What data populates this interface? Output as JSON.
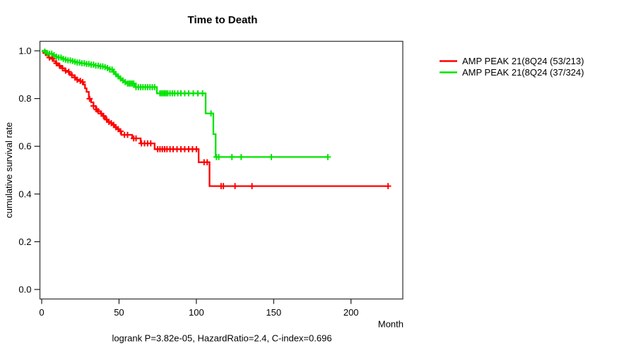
{
  "title": "Time to Death",
  "chart_data": {
    "type": "line",
    "subtype": "kaplan-meier-step",
    "title": "Time to Death",
    "xlabel": "Month",
    "ylabel": "cumulative survival rate",
    "annotation": "logrank P=3.82e-05, HazardRatio=2.4, C-index=0.696",
    "xlim": [
      0,
      233
    ],
    "ylim": [
      0,
      1
    ],
    "xticks": [
      0,
      50,
      100,
      150,
      200
    ],
    "yticks": [
      0.0,
      0.2,
      0.4,
      0.6,
      0.8,
      1.0
    ],
    "ytick_labels": [
      "0.0",
      "0.2",
      "0.4",
      "0.6",
      "0.8",
      "1.0"
    ],
    "grid": false,
    "legend_position": "right-outside",
    "series": [
      {
        "name": "AMP PEAK 21(8Q24 (53/213)",
        "color": "#ff0000",
        "events": "53/213",
        "end_month": 224,
        "steps": [
          [
            0,
            1.0
          ],
          [
            1.5,
            0.991
          ],
          [
            3,
            0.981
          ],
          [
            4.5,
            0.972
          ],
          [
            6,
            0.967
          ],
          [
            7.5,
            0.957
          ],
          [
            9,
            0.948
          ],
          [
            10.5,
            0.938
          ],
          [
            12,
            0.933
          ],
          [
            13.5,
            0.927
          ],
          [
            15,
            0.917
          ],
          [
            16.5,
            0.912
          ],
          [
            18,
            0.903
          ],
          [
            19.5,
            0.898
          ],
          [
            21,
            0.888
          ],
          [
            22.5,
            0.879
          ],
          [
            24,
            0.874
          ],
          [
            25.5,
            0.869
          ],
          [
            27,
            0.859
          ],
          [
            28,
            0.843
          ],
          [
            29,
            0.828
          ],
          [
            30.5,
            0.799
          ],
          [
            32,
            0.784
          ],
          [
            33.5,
            0.769
          ],
          [
            35,
            0.754
          ],
          [
            36.5,
            0.747
          ],
          [
            38,
            0.737
          ],
          [
            39.5,
            0.727
          ],
          [
            41,
            0.712
          ],
          [
            42.5,
            0.702
          ],
          [
            44,
            0.697
          ],
          [
            45.5,
            0.69
          ],
          [
            47,
            0.68
          ],
          [
            48.5,
            0.672
          ],
          [
            50,
            0.663
          ],
          [
            51.5,
            0.648
          ],
          [
            58.5,
            0.633
          ],
          [
            64,
            0.612
          ],
          [
            73,
            0.588
          ],
          [
            101.5,
            0.533
          ],
          [
            108.5,
            0.433
          ]
        ],
        "censor_months": [
          2.5,
          5,
          7,
          9.5,
          11.5,
          13.5,
          15.5,
          17.5,
          19.5,
          21.5,
          23,
          25,
          26.5,
          31,
          33.5,
          35.5,
          36.5,
          38.5,
          40,
          42,
          43.5,
          45,
          46.5,
          48,
          49.5,
          51,
          53.5,
          55.5,
          59.5,
          61,
          64.5,
          66.5,
          68.5,
          70.5,
          75,
          76.5,
          78,
          79.5,
          81,
          83,
          85,
          87.5,
          90,
          92.5,
          95,
          97.5,
          100,
          105,
          107,
          116,
          117.5,
          125,
          136,
          224
        ]
      },
      {
        "name": "AMP PEAK 21(8Q24 (37/324)",
        "color": "#00e400",
        "events": "37/324",
        "end_month": 185,
        "steps": [
          [
            0,
            1.0
          ],
          [
            2,
            0.997
          ],
          [
            3.5,
            0.991
          ],
          [
            5,
            0.988
          ],
          [
            7,
            0.982
          ],
          [
            9,
            0.975
          ],
          [
            11,
            0.972
          ],
          [
            13,
            0.966
          ],
          [
            15,
            0.963
          ],
          [
            17,
            0.96
          ],
          [
            19,
            0.957
          ],
          [
            21,
            0.954
          ],
          [
            23,
            0.951
          ],
          [
            25,
            0.948
          ],
          [
            28,
            0.945
          ],
          [
            31,
            0.942
          ],
          [
            34,
            0.938
          ],
          [
            37,
            0.935
          ],
          [
            40,
            0.932
          ],
          [
            42,
            0.928
          ],
          [
            44,
            0.922
          ],
          [
            46,
            0.912
          ],
          [
            47.5,
            0.902
          ],
          [
            49,
            0.893
          ],
          [
            50.5,
            0.884
          ],
          [
            52,
            0.876
          ],
          [
            53.5,
            0.869
          ],
          [
            55,
            0.863
          ],
          [
            60,
            0.848
          ],
          [
            74.5,
            0.822
          ],
          [
            106,
            0.738
          ],
          [
            111,
            0.651
          ],
          [
            112.5,
            0.555
          ]
        ],
        "censor_months": [
          2,
          3.5,
          5,
          6.5,
          8,
          9.5,
          11,
          12.5,
          14,
          15.5,
          17,
          18.5,
          20,
          21.5,
          23,
          24.5,
          26,
          27.5,
          29,
          30.5,
          32,
          33.5,
          35,
          36.5,
          38,
          39.5,
          41,
          42.5,
          44,
          45.5,
          46.5,
          48,
          49.5,
          51,
          52.5,
          54,
          55.5,
          56.5,
          57.5,
          58.5,
          59.5,
          61,
          62.5,
          64,
          65.5,
          67,
          68.5,
          70,
          71.5,
          73,
          76.5,
          77.5,
          78.5,
          79.5,
          80.5,
          81.5,
          83,
          84.5,
          86,
          88,
          90,
          92.5,
          95,
          98,
          101,
          104,
          109.5,
          113,
          114.5,
          123,
          129,
          148.5,
          185
        ]
      }
    ]
  },
  "legend": {
    "entries": [
      "AMP PEAK 21(8Q24 (53/213)",
      "AMP PEAK 21(8Q24 (37/324)"
    ]
  },
  "colors": {
    "red_series": "#ff0000",
    "green_series": "#00e400",
    "box": "#3c3c3c",
    "tick": "#1a1a1a",
    "text": "#000000",
    "background": "#ffffff"
  }
}
